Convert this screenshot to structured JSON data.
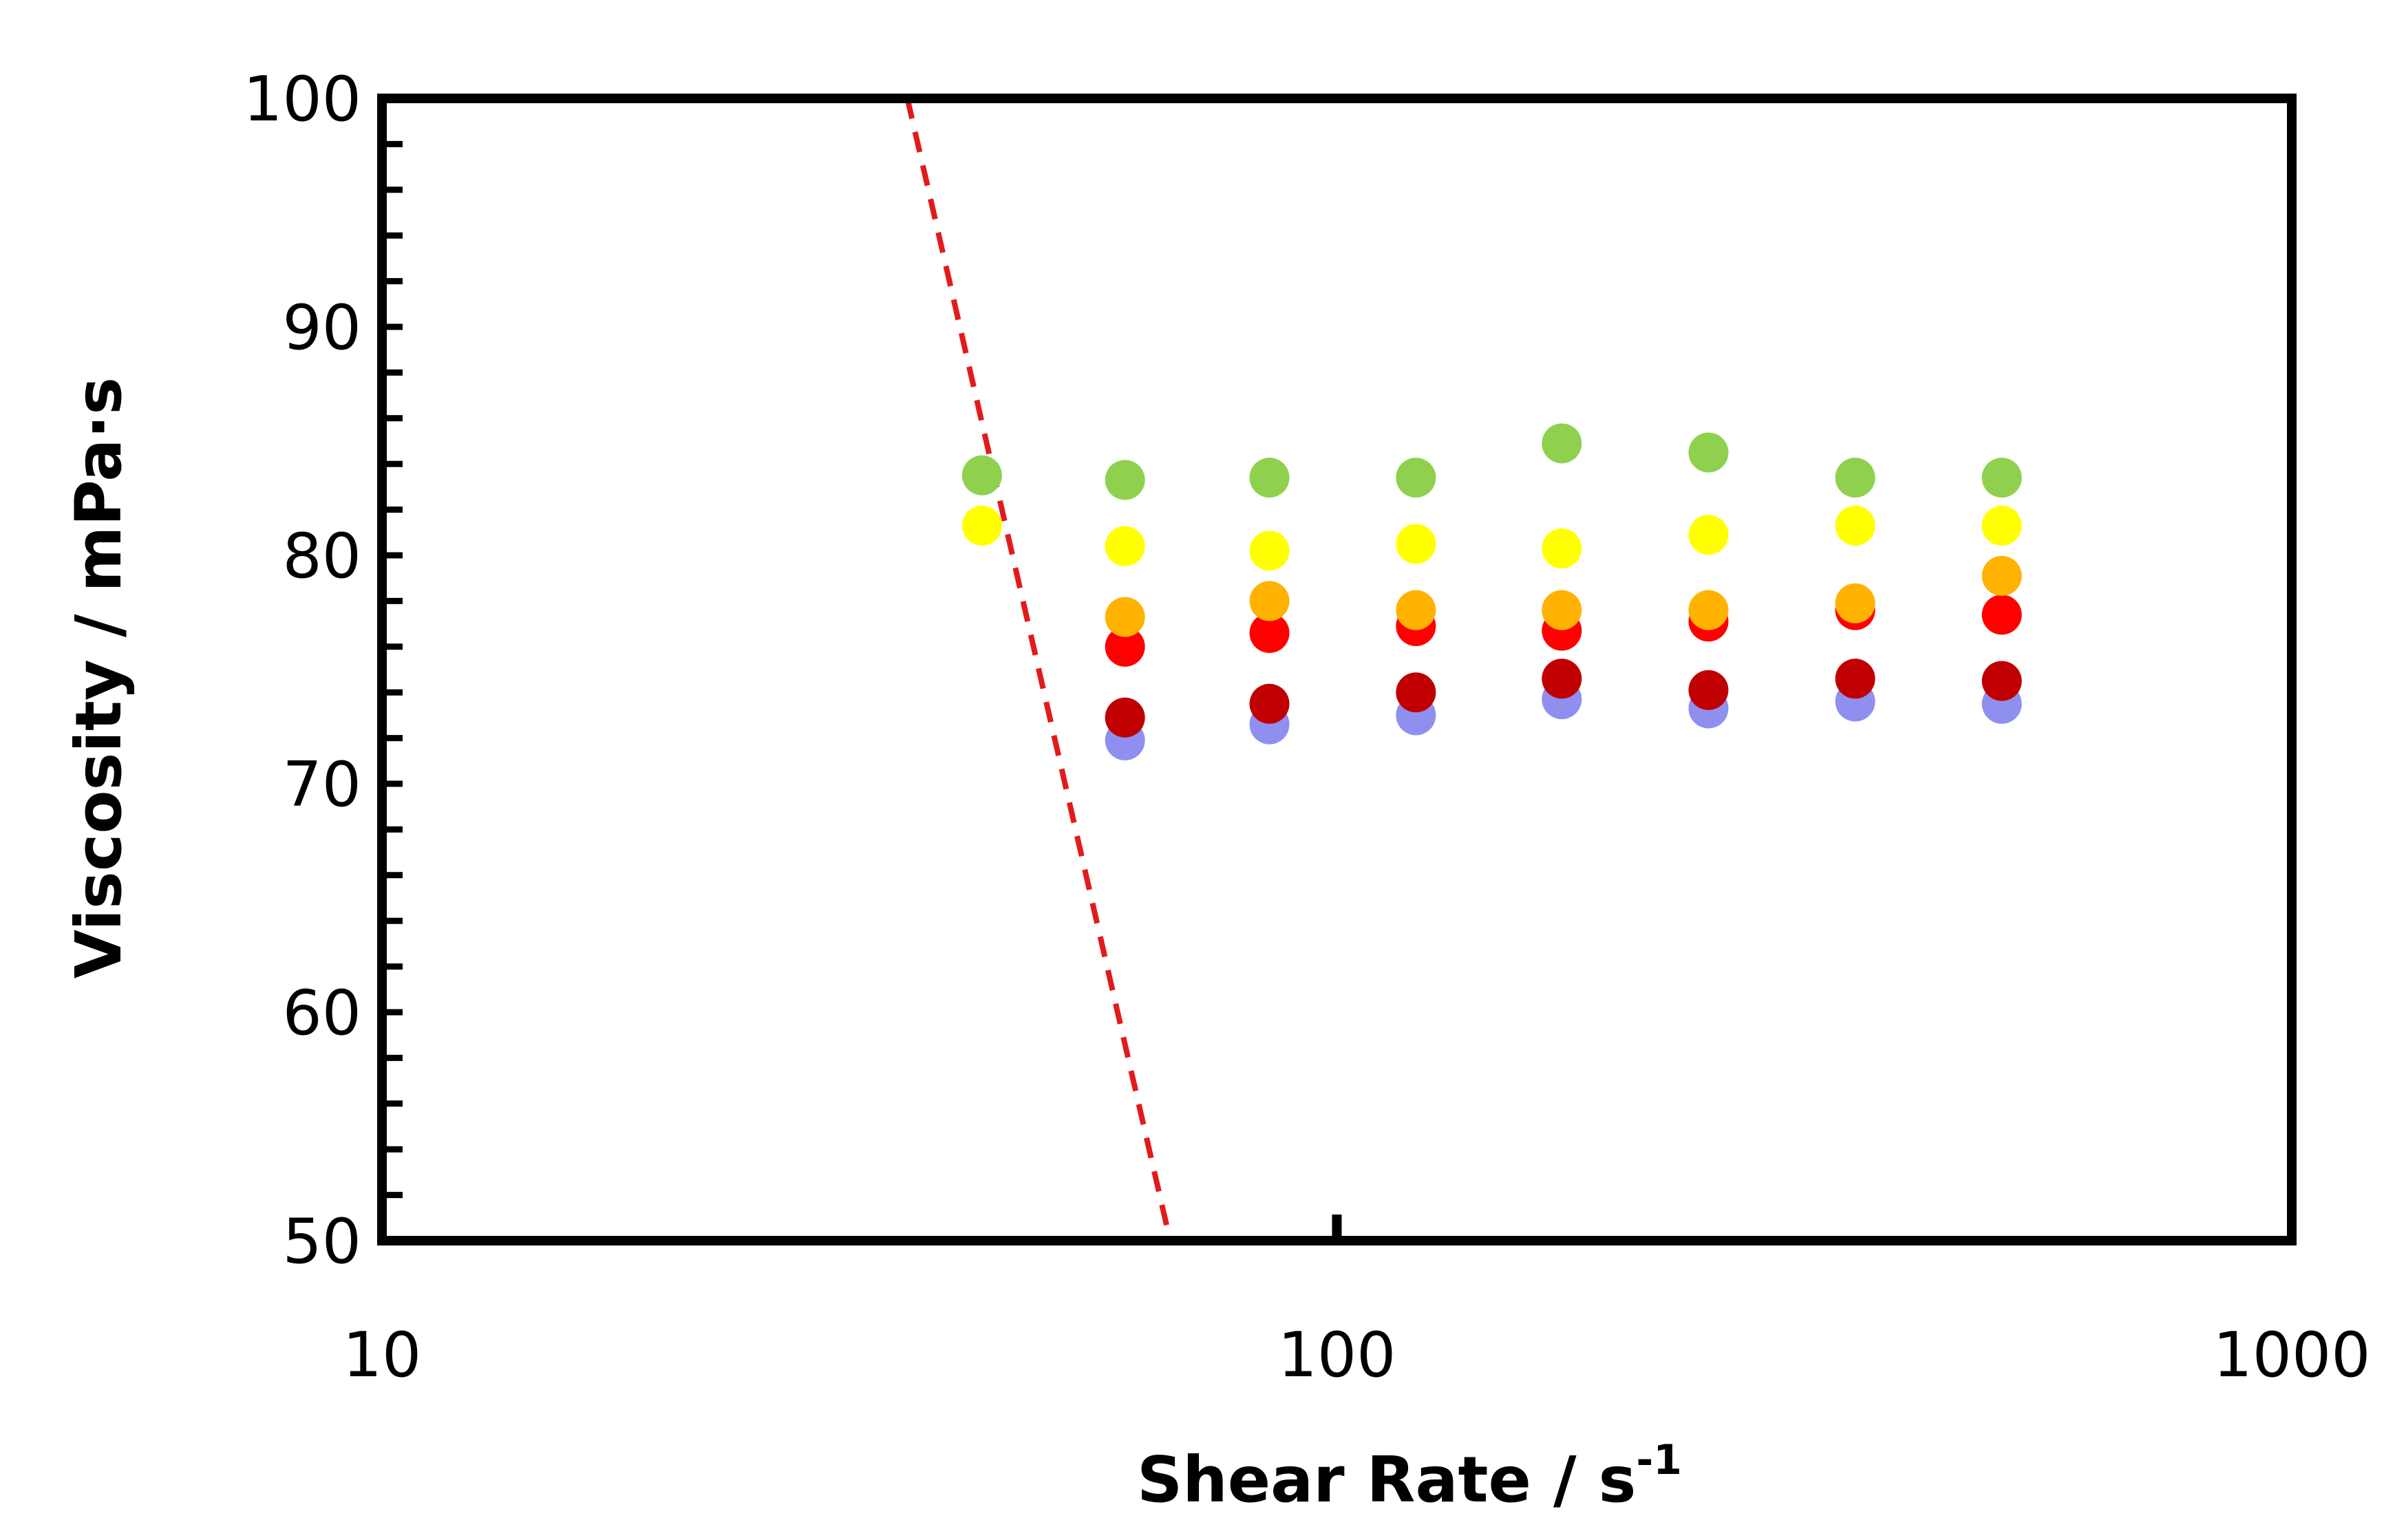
{
  "chart_data": {
    "type": "scatter",
    "title": "",
    "xlabel": "Shear Rate / s",
    "xlabel_superscript": "-1",
    "ylabel": "Viscosity / mPa·s",
    "xscale": "log",
    "xlim": [
      10,
      1000
    ],
    "ylim": [
      50,
      100
    ],
    "x_ticks": [
      10,
      100,
      1000
    ],
    "x_tick_labels": [
      "10",
      "100",
      "1000"
    ],
    "y_ticks": [
      50,
      60,
      70,
      80,
      90,
      100
    ],
    "y_tick_labels": [
      "50",
      "60",
      "70",
      "80",
      "90",
      "100"
    ],
    "y_minor_step": 2,
    "grid": false,
    "legend": "none",
    "x": [
      60,
      85,
      121,
      172,
      245,
      349,
      497
    ],
    "series": [
      {
        "color": "#8fd14f",
        "x": [
          42.5,
          60,
          85,
          121,
          172,
          245,
          349,
          497
        ],
        "values": [
          83.5,
          83.3,
          83.4,
          83.4,
          84.9,
          84.5,
          83.4,
          83.4
        ]
      },
      {
        "color": "#ffff00",
        "x": [
          42.5,
          60,
          85,
          121,
          172,
          245,
          349,
          497
        ],
        "values": [
          81.3,
          80.4,
          80.2,
          80.5,
          80.3,
          80.9,
          81.3,
          81.3
        ]
      },
      {
        "color": "#ffb300",
        "x": [
          60,
          85,
          121,
          172,
          245,
          349,
          497
        ],
        "values": [
          77.3,
          78.0,
          77.6,
          77.6,
          77.6,
          77.9,
          79.1
        ]
      },
      {
        "color": "#ff0000",
        "x": [
          60,
          85,
          121,
          172,
          245,
          349,
          497
        ],
        "values": [
          76.0,
          76.6,
          76.9,
          76.7,
          77.1,
          77.6,
          77.4
        ]
      },
      {
        "color": "#c00000",
        "x": [
          60,
          85,
          121,
          172,
          245,
          349,
          497
        ],
        "values": [
          72.9,
          73.5,
          74.0,
          74.6,
          74.1,
          74.6,
          74.5
        ]
      },
      {
        "color": "#8f8ff0",
        "x": [
          60,
          85,
          121,
          172,
          245,
          349,
          497
        ],
        "values": [
          71.9,
          72.6,
          73.0,
          73.7,
          73.3,
          73.6,
          73.5
        ]
      }
    ],
    "reference_line": {
      "style": "dashed",
      "color": "#e31a1c",
      "x": [
        35.5,
        66.9
      ],
      "values": [
        100,
        50
      ]
    }
  }
}
